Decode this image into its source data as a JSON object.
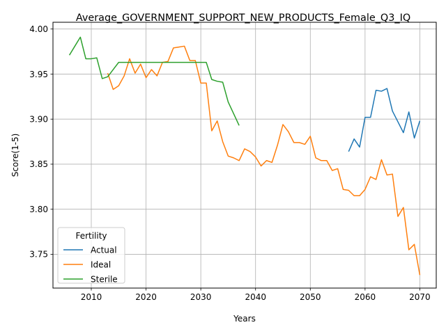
{
  "chart_data": {
    "type": "line",
    "title": "Average_GOVERNMENT_SUPPORT_NEW_PRODUCTS_Female_Q3_IQ",
    "xlabel": "Years",
    "ylabel": "Score(1-5)",
    "xlim": [
      2003,
      2073
    ],
    "ylim": [
      3.7125,
      4.0075
    ],
    "xticks": [
      2010,
      2020,
      2030,
      2040,
      2050,
      2060,
      2070
    ],
    "yticks": [
      3.75,
      3.8,
      3.85,
      3.9,
      3.95,
      4.0
    ],
    "xtick_labels": [
      "2010",
      "2020",
      "2030",
      "2040",
      "2050",
      "2060",
      "2070"
    ],
    "ytick_labels": [
      "3.75",
      "3.80",
      "3.85",
      "3.90",
      "3.95",
      "4.00"
    ],
    "grid": true,
    "legend": {
      "title": "Fertility",
      "placement": "lower-left"
    },
    "series": [
      {
        "name": "Actual",
        "color": "#1f77b4",
        "x": [
          2057,
          2058,
          2059,
          2060,
          2061,
          2062,
          2063,
          2064,
          2065,
          2066,
          2067,
          2068,
          2069,
          2070
        ],
        "y": [
          3.864,
          3.878,
          3.869,
          3.902,
          3.902,
          3.932,
          3.931,
          3.934,
          3.909,
          3.897,
          3.885,
          3.908,
          3.879,
          3.898
        ]
      },
      {
        "name": "Ideal",
        "color": "#ff7f0e",
        "x": [
          2013,
          2014,
          2015,
          2016,
          2017,
          2018,
          2019,
          2020,
          2021,
          2022,
          2023,
          2024,
          2025,
          2026,
          2027,
          2028,
          2029,
          2030,
          2031,
          2032,
          2033,
          2034,
          2035,
          2036,
          2037,
          2038,
          2039,
          2040,
          2041,
          2042,
          2043,
          2044,
          2045,
          2046,
          2047,
          2048,
          2049,
          2050,
          2051,
          2052,
          2053,
          2054,
          2055,
          2056,
          2057,
          2058,
          2059,
          2060,
          2061,
          2062,
          2063,
          2064,
          2065,
          2066,
          2067,
          2068,
          2069,
          2070
        ],
        "y": [
          3.951,
          3.933,
          3.937,
          3.948,
          3.967,
          3.951,
          3.961,
          3.946,
          3.955,
          3.948,
          3.963,
          3.964,
          3.979,
          3.98,
          3.981,
          3.965,
          3.965,
          3.94,
          3.94,
          3.887,
          3.898,
          3.875,
          3.859,
          3.857,
          3.854,
          3.867,
          3.864,
          3.858,
          3.848,
          3.854,
          3.852,
          3.871,
          3.894,
          3.886,
          3.874,
          3.874,
          3.872,
          3.881,
          3.857,
          3.854,
          3.854,
          3.843,
          3.845,
          3.822,
          3.821,
          3.815,
          3.815,
          3.822,
          3.836,
          3.833,
          3.855,
          3.838,
          3.839,
          3.792,
          3.802,
          3.755,
          3.761,
          3.727
        ]
      },
      {
        "name": "Sterile",
        "color": "#2ca02c",
        "x": [
          2006,
          2007,
          2008,
          2009,
          2010,
          2011,
          2012,
          2013,
          2014,
          2015,
          2016,
          2017,
          2018,
          2019,
          2020,
          2021,
          2022,
          2023,
          2024,
          2025,
          2026,
          2027,
          2028,
          2029,
          2030,
          2031,
          2032,
          2033,
          2034,
          2035,
          2036,
          2037
        ],
        "y": [
          3.971,
          3.981,
          3.991,
          3.967,
          3.967,
          3.968,
          3.945,
          3.947,
          3.955,
          3.963,
          3.963,
          3.963,
          3.963,
          3.963,
          3.963,
          3.963,
          3.963,
          3.963,
          3.963,
          3.963,
          3.963,
          3.963,
          3.963,
          3.963,
          3.963,
          3.963,
          3.944,
          3.942,
          3.941,
          3.919,
          3.906,
          3.893
        ]
      }
    ]
  }
}
